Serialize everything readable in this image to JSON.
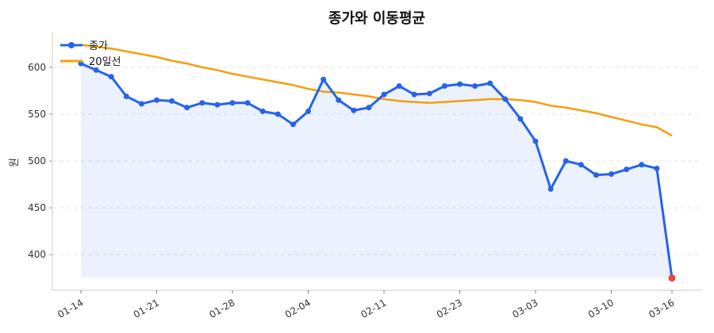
{
  "chart_data": {
    "type": "line",
    "title": "종가와 이동평균",
    "xlabel": "",
    "ylabel": "원",
    "ylim": [
      362,
      638
    ],
    "yticks": [
      400,
      450,
      500,
      550,
      600
    ],
    "grid": "y-dashed",
    "legend_placement": "top-left",
    "x_tick_labels": [
      {
        "index": 0,
        "label": "01-14"
      },
      {
        "index": 5,
        "label": "01-21"
      },
      {
        "index": 10,
        "label": "01-28"
      },
      {
        "index": 15,
        "label": "02-04"
      },
      {
        "index": 20,
        "label": "02-11"
      },
      {
        "index": 25,
        "label": "02-23"
      },
      {
        "index": 30,
        "label": "03-03"
      },
      {
        "index": 35,
        "label": "03-10"
      },
      {
        "index": 39,
        "label": "03-16"
      }
    ],
    "series": [
      {
        "name": "종가",
        "color": "#2563eb",
        "values": [
          604,
          597,
          590,
          569,
          561,
          565,
          564,
          557,
          562,
          560,
          562,
          562,
          553,
          550,
          539,
          553,
          587,
          565,
          554,
          557,
          571,
          580,
          571,
          572,
          580,
          582,
          580,
          583,
          566,
          545,
          521,
          470,
          500,
          496,
          485,
          486,
          491,
          496,
          492,
          375
        ],
        "last_point_color": "#ef4444"
      },
      {
        "name": "20일선",
        "color": "#f59e0b",
        "values": [
          624,
          622,
          620,
          617,
          614,
          611,
          607,
          604,
          600,
          597,
          593,
          590,
          587,
          584,
          581,
          577,
          574,
          573,
          571,
          569,
          566,
          564,
          563,
          562,
          563,
          564,
          565,
          566,
          566,
          565,
          563,
          559,
          557,
          554,
          551,
          547,
          543,
          539,
          536,
          527
        ]
      }
    ]
  }
}
